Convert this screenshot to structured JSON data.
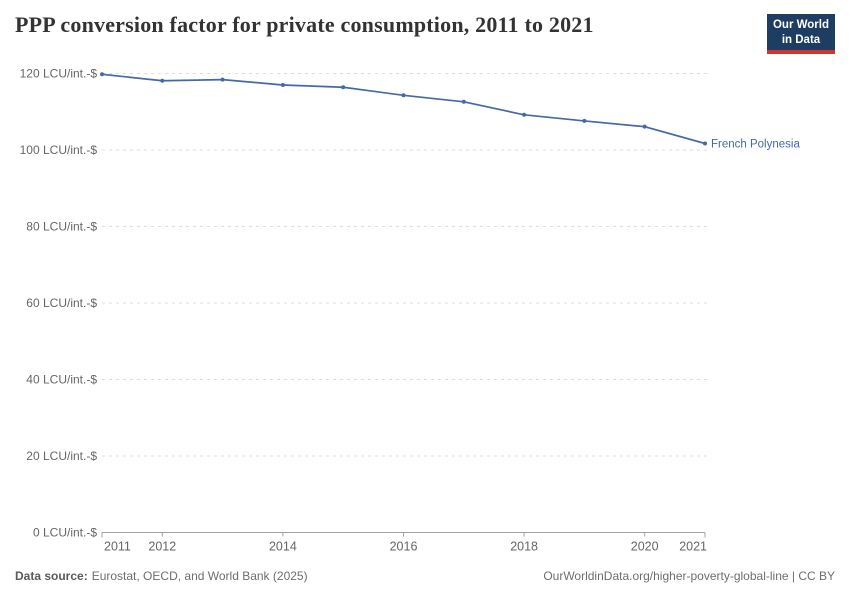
{
  "header": {
    "title": "PPP conversion factor for private consumption, 2011 to 2021",
    "logo": {
      "line1": "Our World",
      "line2": "in Data"
    }
  },
  "chart_data": {
    "type": "line",
    "title": "PPP conversion factor for private consumption, 2011 to 2021",
    "x": [
      2011,
      2012,
      2013,
      2014,
      2015,
      2016,
      2017,
      2018,
      2019,
      2020,
      2021
    ],
    "series": [
      {
        "name": "French Polynesia",
        "values": [
          119.8,
          118.1,
          118.4,
          117.0,
          116.4,
          114.3,
          112.6,
          109.2,
          107.6,
          106.1,
          101.7
        ]
      }
    ],
    "y_unit": "LCU/int.-$",
    "yticks": [
      0,
      20,
      40,
      60,
      80,
      100,
      120
    ],
    "ytick_labels": [
      "0 LCU/int.-$",
      "20 LCU/int.-$",
      "40 LCU/int.-$",
      "60 LCU/int.-$",
      "80 LCU/int.-$",
      "100 LCU/int.-$",
      "120 LCU/int.-$"
    ],
    "xtick_labels": [
      2011,
      2012,
      2014,
      2016,
      2018,
      2020,
      2021
    ],
    "xlim": [
      2011,
      2021
    ],
    "ylim": [
      0,
      120
    ],
    "grid": "horizontal-dashed",
    "legend_position": "end-of-line-label"
  },
  "footer": {
    "datasource_label": "Data source:",
    "datasource_text": "Eurostat, OECD, and World Bank (2025)",
    "credit": "OurWorldinData.org/higher-poverty-global-line | CC BY"
  },
  "colors": {
    "series_line": "#4569a6",
    "grid": "#dcdcdc",
    "axis": "#a3a3a3",
    "tick_text": "#666666",
    "title_text": "#333333",
    "footer_text": "#6e6e6e",
    "logo_bg": "#1d3d63",
    "logo_accent": "#d0342f",
    "background": "#ffffff"
  }
}
